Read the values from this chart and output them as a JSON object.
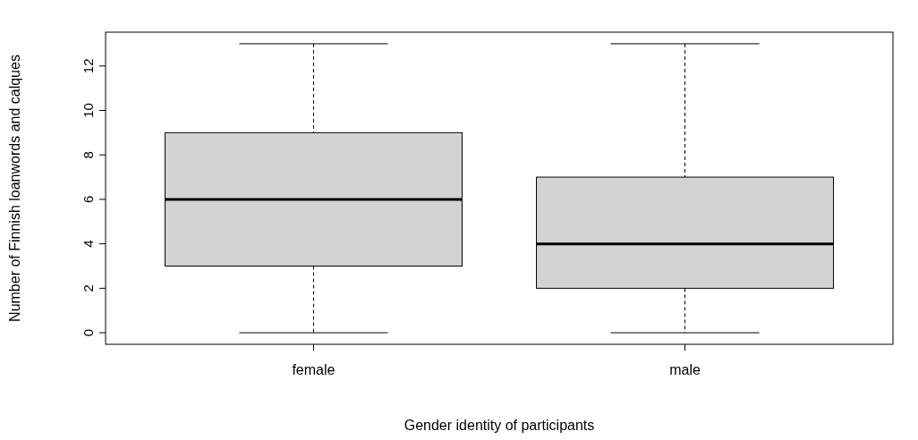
{
  "chart_data": {
    "type": "box",
    "xlabel": "Gender identity of participants",
    "ylabel": "Number of Finnish loanwords and calques",
    "categories": [
      "female",
      "male"
    ],
    "boxes": [
      {
        "low": 0,
        "q1": 3,
        "median": 6,
        "q3": 9,
        "high": 13
      },
      {
        "low": 0,
        "q1": 2,
        "median": 4,
        "q3": 7,
        "high": 13
      }
    ],
    "color": "#d3d3d3",
    "ylim": [
      -0.52,
      13.52
    ],
    "yticks": [
      0,
      2,
      4,
      6,
      8,
      10,
      12
    ],
    "grid": false
  }
}
